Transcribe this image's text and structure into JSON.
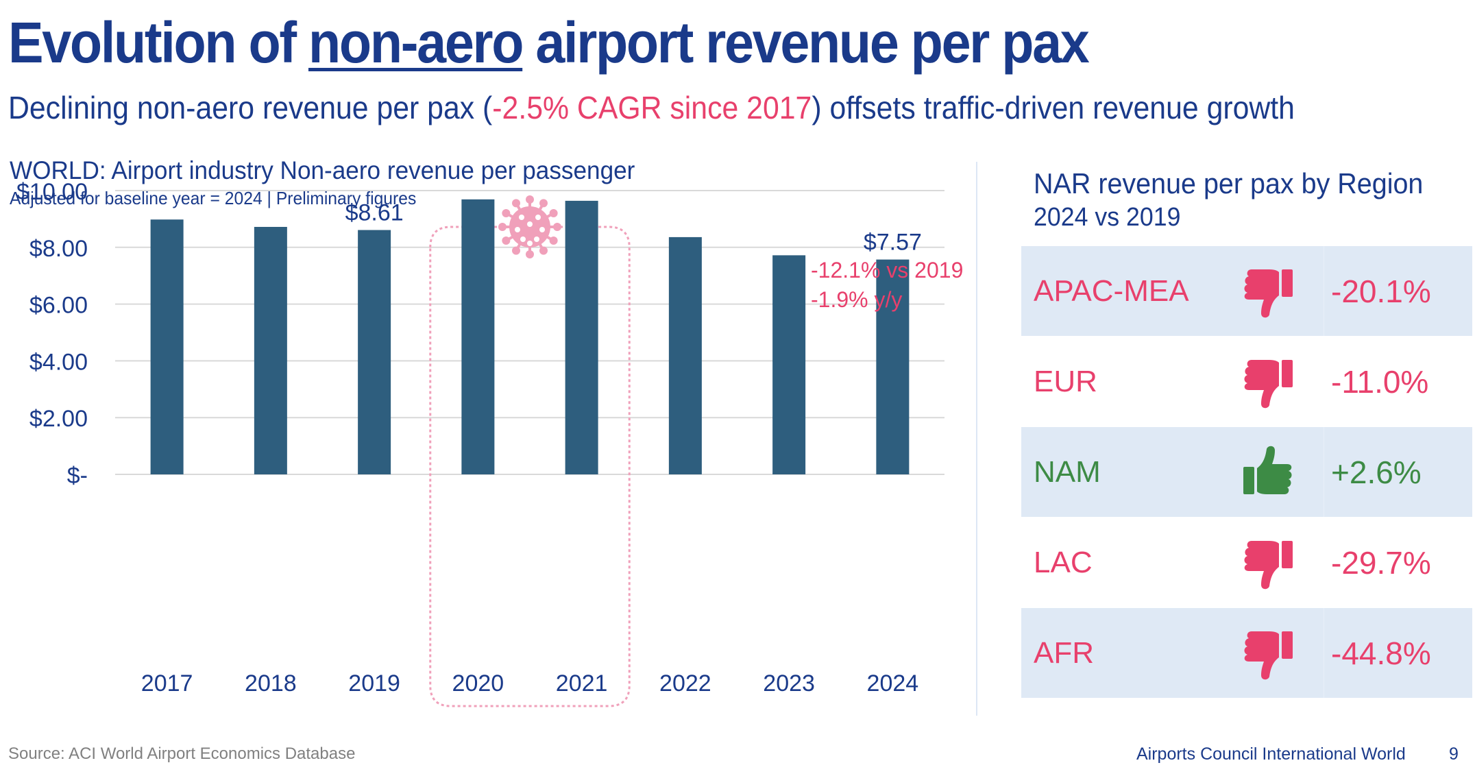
{
  "header": {
    "title_prefix": "Evolution of ",
    "title_underlined": "non-aero",
    "title_suffix": " airport revenue per pax",
    "subtitle_prefix": "Declining non-aero revenue per pax (",
    "subtitle_highlight": "-2.5% CAGR since 2017",
    "subtitle_suffix": ") offsets traffic-driven revenue growth"
  },
  "colors": {
    "primary": "#1a3a8a",
    "bar": "#2e5e7e",
    "negative": "#e8406c",
    "positive": "#3d8b45",
    "covid_marker": "#f0a0ba",
    "row_shade": "#dfe9f5",
    "gridline": "#d9d9d9"
  },
  "chart_data": {
    "type": "bar",
    "title": "WORLD: Airport industry Non-aero revenue per passenger",
    "subtitle": "Adjusted for baseline year = 2024 | Preliminary figures",
    "categories": [
      "2017",
      "2018",
      "2019",
      "2020",
      "2021",
      "2022",
      "2023",
      "2024"
    ],
    "values": [
      8.98,
      8.72,
      8.61,
      9.69,
      9.64,
      8.36,
      7.72,
      7.57
    ],
    "data_labels": [
      {
        "category": "2019",
        "text": "$8.61"
      },
      {
        "category": "2024",
        "text": "$7.57"
      }
    ],
    "xlabel": "",
    "ylabel": "",
    "ylim": [
      0,
      10
    ],
    "yticks": [
      0,
      2,
      4,
      6,
      8,
      10
    ],
    "ytick_labels": [
      "$-",
      "$2.00",
      "$4.00",
      "$6.00",
      "$8.00",
      "$10.00"
    ],
    "grid": true,
    "legend": "none",
    "annotations": [
      {
        "text": "-12.1% vs 2019",
        "category": "2024",
        "color": "negative"
      },
      {
        "text": "-1.9% y/y",
        "category": "2024",
        "color": "negative"
      }
    ],
    "highlight_period": {
      "from": "2020",
      "to": "2021",
      "icon": "covid-virus-icon"
    }
  },
  "region_panel": {
    "title": "NAR revenue per pax by Region",
    "subtitle": "2024 vs 2019",
    "rows": [
      {
        "region": "APAC-MEA",
        "change": "-20.1%",
        "direction": "down"
      },
      {
        "region": "EUR",
        "change": "-11.0%",
        "direction": "down"
      },
      {
        "region": "NAM",
        "change": "+2.6%",
        "direction": "up"
      },
      {
        "region": "LAC",
        "change": "-29.7%",
        "direction": "down"
      },
      {
        "region": "AFR",
        "change": "-44.8%",
        "direction": "down"
      }
    ]
  },
  "footer": {
    "source": "Source: ACI World Airport Economics Database",
    "organization": "Airports Council International World",
    "page_number": "9"
  }
}
